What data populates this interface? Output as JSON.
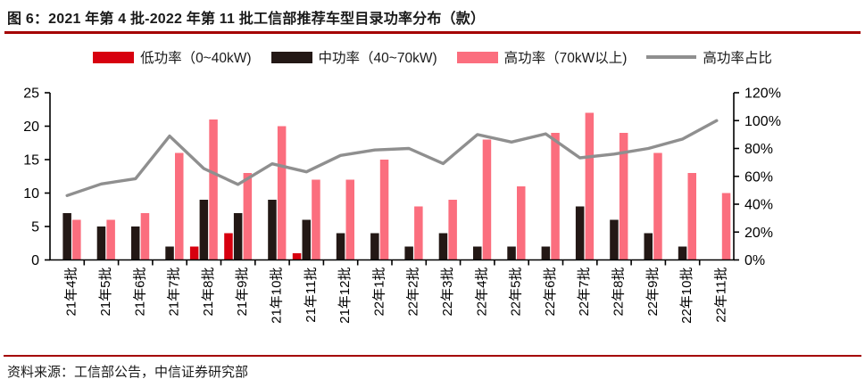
{
  "header": {
    "title": "图 6：2021 年第 4 批-2022 年第 11 批工信部推荐车型目录功率分布（款）"
  },
  "footer": {
    "source": "资料来源：工信部公告，中信证券研究部"
  },
  "colors": {
    "accent_red": "#d7000f",
    "dark_bar": "#231815",
    "pink_bar": "#fb6e7e",
    "ratio_line": "#8f8f8f",
    "rule_red": "#a40000",
    "axis": "#000000"
  },
  "legend": {
    "items": [
      {
        "label": "低功率（0~40kW)",
        "shape": "rect",
        "color": "#d7000f"
      },
      {
        "label": "中功率（40~70kW)",
        "shape": "rect",
        "color": "#231815"
      },
      {
        "label": "高功率（70kW以上)",
        "shape": "rect",
        "color": "#fb6e7e"
      },
      {
        "label": "高功率占比",
        "shape": "line",
        "color": "#8f8f8f"
      }
    ]
  },
  "chart_data": {
    "type": "bar",
    "title": "2021年第4批-2022年第11批工信部推荐车型目录功率分布（款）",
    "categories": [
      "21年4批",
      "21年5批",
      "21年6批",
      "21年7批",
      "21年8批",
      "21年9批",
      "21年10批",
      "21年11批",
      "21年12批",
      "22年1批",
      "22年2批",
      "22年3批",
      "22年4批",
      "22年5批",
      "22年6批",
      "22年7批",
      "22年8批",
      "22年9批",
      "22年10批",
      "22年11批"
    ],
    "series": [
      {
        "key": "low",
        "name": "低功率（0~40kW)",
        "type": "bar",
        "axis": "left",
        "color": "#d7000f",
        "values": [
          0,
          0,
          0,
          0,
          2,
          4,
          0,
          1,
          0,
          0,
          0,
          0,
          0,
          0,
          0,
          0,
          0,
          0,
          0,
          0
        ]
      },
      {
        "key": "mid",
        "name": "中功率（40~70kW)",
        "type": "bar",
        "axis": "left",
        "color": "#231815",
        "values": [
          7,
          5,
          5,
          2,
          9,
          7,
          9,
          6,
          4,
          4,
          2,
          4,
          2,
          2,
          2,
          8,
          6,
          4,
          2,
          0
        ]
      },
      {
        "key": "high",
        "name": "高功率（70kW以上)",
        "type": "bar",
        "axis": "left",
        "color": "#fb6e7e",
        "values": [
          6,
          6,
          7,
          16,
          21,
          13,
          20,
          12,
          12,
          15,
          8,
          9,
          18,
          11,
          19,
          22,
          19,
          16,
          13,
          10
        ]
      },
      {
        "key": "ratio",
        "name": "高功率占比",
        "type": "line",
        "axis": "right",
        "color": "#8f8f8f",
        "values": [
          46.2,
          54.5,
          58.3,
          88.9,
          65.6,
          54.2,
          69.0,
          63.2,
          75.0,
          78.9,
          80.0,
          69.2,
          90.0,
          84.6,
          90.5,
          73.3,
          76.0,
          80.0,
          86.7,
          100.0
        ]
      }
    ],
    "left_axis": {
      "min": 0,
      "max": 25,
      "step": 5,
      "tick_labels": [
        "0",
        "5",
        "10",
        "15",
        "20",
        "25"
      ]
    },
    "right_axis": {
      "min": 0,
      "max": 120,
      "step": 20,
      "tick_labels": [
        "0%",
        "20%",
        "40%",
        "60%",
        "80%",
        "100%",
        "120%"
      ]
    },
    "grid": false,
    "legend_position": "top"
  }
}
